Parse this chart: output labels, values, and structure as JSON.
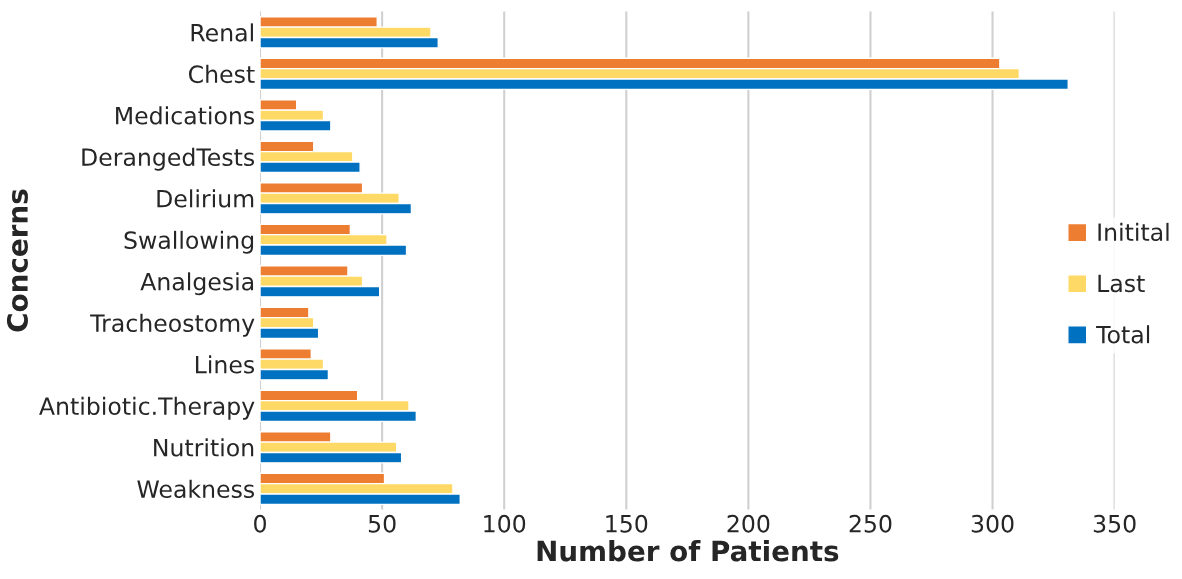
{
  "chart_data": {
    "type": "bar",
    "orientation": "horizontal",
    "xlabel": "Number of Patients",
    "ylabel": "Concerns",
    "categories": [
      "Renal",
      "Chest",
      "Medications",
      "DerangedTests",
      "Delirium",
      "Swallowing",
      "Analgesia",
      "Tracheostomy",
      "Lines",
      "Antibiotic.Therapy",
      "Nutrition",
      "Weakness"
    ],
    "series": [
      {
        "name": "Initital",
        "color": "#ed7d31",
        "values": [
          48,
          303,
          15,
          22,
          42,
          37,
          36,
          20,
          21,
          40,
          29,
          51
        ]
      },
      {
        "name": "Last",
        "color": "#ffd966",
        "values": [
          70,
          311,
          26,
          38,
          57,
          52,
          42,
          22,
          26,
          61,
          56,
          79
        ]
      },
      {
        "name": "Total",
        "color": "#0070c0",
        "values": [
          73,
          331,
          29,
          41,
          62,
          60,
          49,
          24,
          28,
          64,
          58,
          82
        ]
      }
    ],
    "xlim": [
      0,
      350
    ],
    "xticks": [
      0,
      50,
      100,
      150,
      200,
      250,
      300,
      350
    ],
    "grid": "x",
    "legend": "right"
  }
}
